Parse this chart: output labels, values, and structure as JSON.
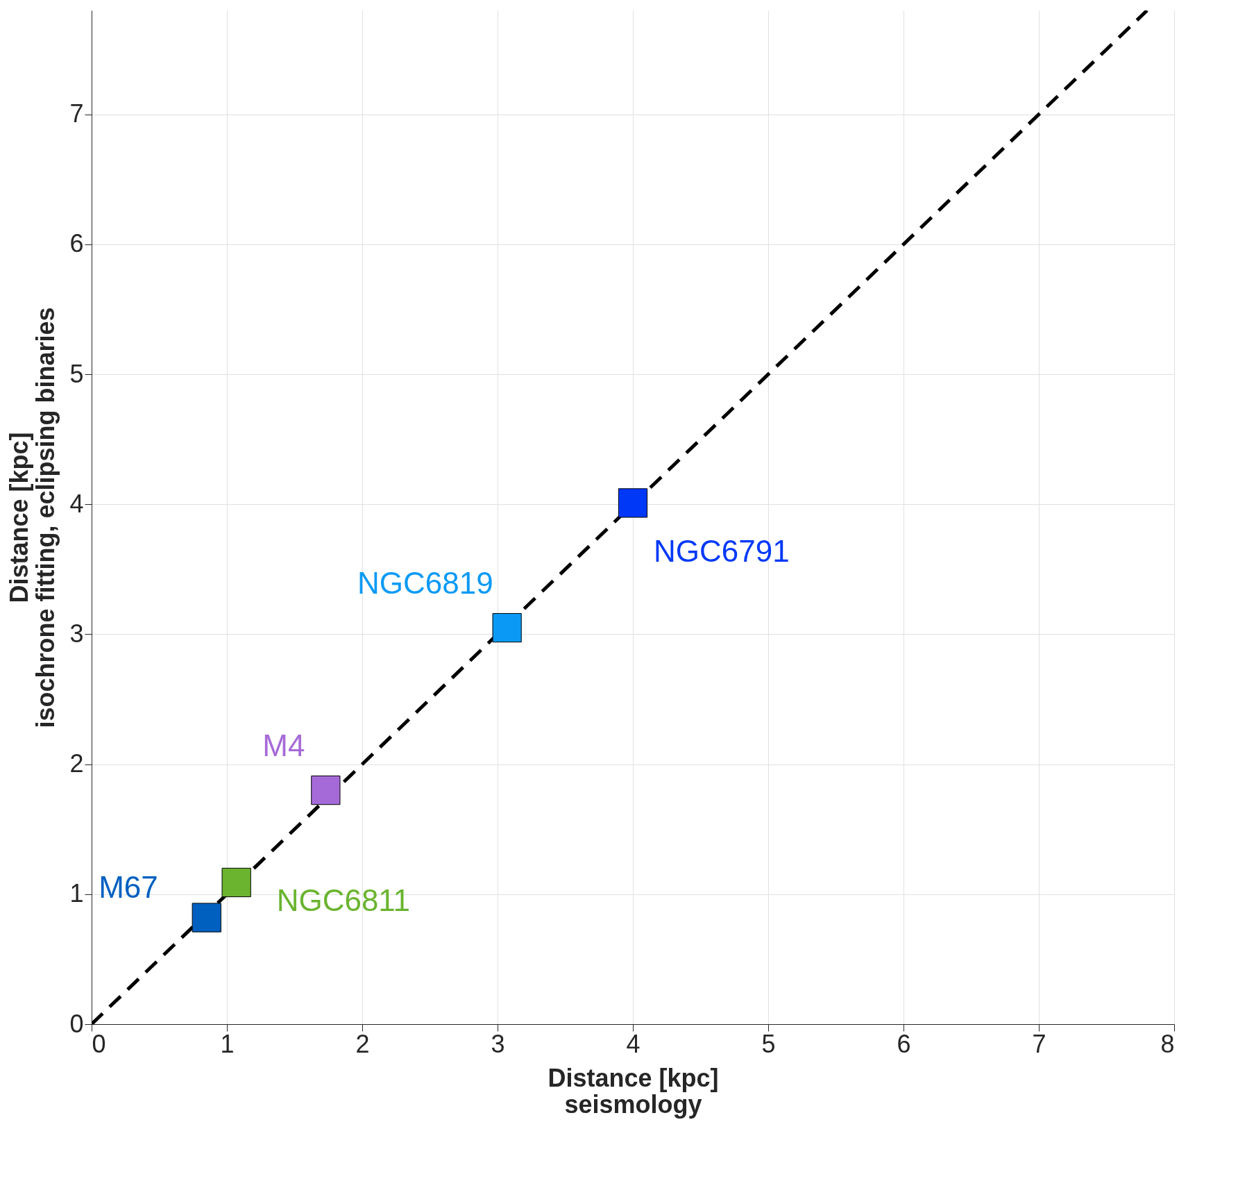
{
  "chart_data": {
    "type": "scatter",
    "xlabel": "Distance [kpc]\nseismology",
    "ylabel": "Distance [kpc]\nisochrone fitting, eclipsing binaries",
    "xlim": [
      0,
      8
    ],
    "ylim": [
      0,
      7.8
    ],
    "xticks": [
      0,
      1,
      2,
      3,
      4,
      5,
      6,
      7,
      8
    ],
    "yticks": [
      0,
      1,
      2,
      3,
      4,
      5,
      6,
      7
    ],
    "grid": true,
    "marker": "square",
    "series": [
      {
        "type": "line",
        "x": [
          0,
          7.8
        ],
        "values": [
          0,
          7.8
        ],
        "color": "#000000",
        "line_style": "dashed",
        "marker": "none"
      },
      {
        "name": "M67",
        "x": [
          0.85
        ],
        "values": [
          0.82
        ],
        "color": "#0060c0"
      },
      {
        "name": "NGC6811",
        "x": [
          1.07
        ],
        "values": [
          1.09
        ],
        "color": "#6ab42f"
      },
      {
        "name": "M4",
        "x": [
          1.73
        ],
        "values": [
          1.8
        ],
        "color": "#a66ad8"
      },
      {
        "name": "NGC6819",
        "x": [
          3.07
        ],
        "values": [
          3.05
        ],
        "color": "#0a9af5"
      },
      {
        "name": "NGC6791",
        "x": [
          4.0
        ],
        "values": [
          4.01
        ],
        "color": "#0038f8"
      }
    ]
  }
}
